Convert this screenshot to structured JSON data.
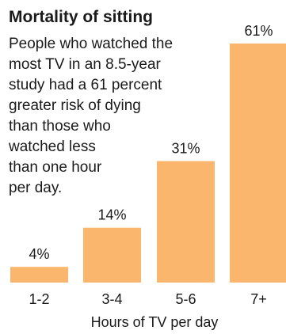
{
  "chart_data": {
    "type": "bar",
    "title": "Mortality of sitting",
    "subtitle_lines": [
      "People who watched the",
      "most TV in an 8.5-year",
      "study had a 61 percent",
      "greater risk of dying",
      "than those who",
      "watched less",
      "than one hour",
      "per day."
    ],
    "categories": [
      "1-2",
      "3-4",
      "5-6",
      "7+"
    ],
    "values": [
      4,
      14,
      31,
      61
    ],
    "value_labels": [
      "4%",
      "14%",
      "31%",
      "61%"
    ],
    "xlabel": "Hours of TV per day",
    "ylabel": "",
    "ylim": [
      0,
      61
    ],
    "grid": false,
    "legend": "none",
    "colors": {
      "bar": "#f9b66c",
      "text": "#1a1a1a"
    }
  }
}
